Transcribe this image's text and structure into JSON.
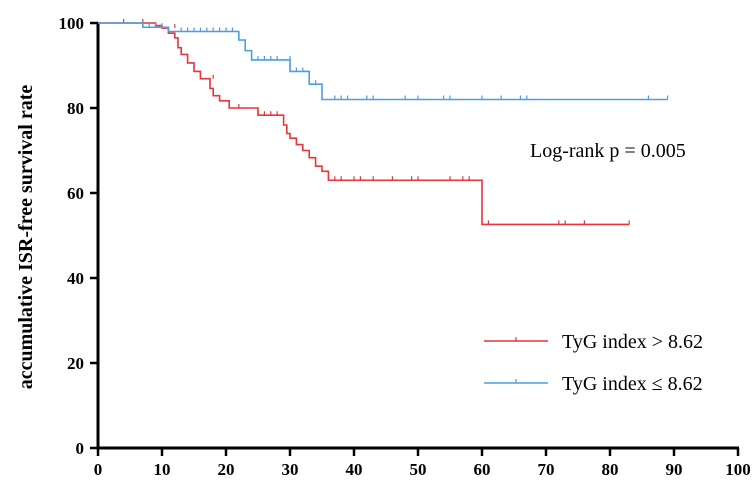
{
  "chart_data": {
    "type": "line",
    "xlabel": "",
    "ylabel": "accumulative ISR-free survival rate",
    "xlim": [
      0,
      100
    ],
    "ylim": [
      0,
      100
    ],
    "xticks": [
      "0",
      "10",
      "20",
      "30",
      "40",
      "50",
      "60",
      "70",
      "80",
      "90",
      "100"
    ],
    "yticks": [
      "0",
      "20",
      "40",
      "60",
      "80",
      "100"
    ],
    "annotation": "Log-rank p = 0.005",
    "legend_position": "bottom-right",
    "grid": false,
    "series": [
      {
        "name": "TyG index > 8.62",
        "color": "#e8343a",
        "steps": [
          [
            0,
            100
          ],
          [
            9,
            99.4
          ],
          [
            10,
            98.8
          ],
          [
            11,
            97.6
          ],
          [
            12,
            96.5
          ],
          [
            12.5,
            94.2
          ],
          [
            13,
            92.6
          ],
          [
            14,
            90.6
          ],
          [
            15,
            88.6
          ],
          [
            16,
            86.9
          ],
          [
            17.5,
            84.6
          ],
          [
            18,
            82.9
          ],
          [
            19,
            81.7
          ],
          [
            20.5,
            80
          ],
          [
            25,
            78.3
          ],
          [
            29,
            76
          ],
          [
            29.5,
            74
          ],
          [
            30,
            72.9
          ],
          [
            31,
            71.4
          ],
          [
            32,
            70
          ],
          [
            33,
            68.3
          ],
          [
            34,
            66.3
          ],
          [
            35,
            65.1
          ],
          [
            36,
            63
          ],
          [
            60,
            52.6
          ],
          [
            83,
            52.6
          ]
        ],
        "censored": [
          [
            4,
            100
          ],
          [
            7,
            100
          ],
          [
            12,
            98.8
          ],
          [
            18,
            86.9
          ],
          [
            22,
            80
          ],
          [
            25,
            78.3
          ],
          [
            26,
            78.3
          ],
          [
            27,
            78.3
          ],
          [
            28,
            78.3
          ],
          [
            37,
            63
          ],
          [
            38,
            63
          ],
          [
            40,
            63
          ],
          [
            41,
            63
          ],
          [
            43,
            63
          ],
          [
            46,
            63
          ],
          [
            49,
            63
          ],
          [
            50,
            63
          ],
          [
            55,
            63
          ],
          [
            57,
            63
          ],
          [
            58,
            63
          ],
          [
            61,
            52.6
          ],
          [
            72,
            52.6
          ],
          [
            73,
            52.6
          ],
          [
            76,
            52.6
          ],
          [
            83,
            52.6
          ]
        ]
      },
      {
        "name": "TyG index ≤ 8.62",
        "color": "#4a9de6",
        "steps": [
          [
            0,
            100
          ],
          [
            7,
            99
          ],
          [
            11,
            98
          ],
          [
            22,
            96
          ],
          [
            23,
            93.5
          ],
          [
            24,
            91.3
          ],
          [
            30,
            88.6
          ],
          [
            33,
            85.6
          ],
          [
            35,
            82
          ],
          [
            89,
            82
          ]
        ],
        "censored": [
          [
            8,
            99
          ],
          [
            9,
            99
          ],
          [
            10,
            99
          ],
          [
            13,
            98
          ],
          [
            14,
            98
          ],
          [
            15,
            98
          ],
          [
            16,
            98
          ],
          [
            17,
            98
          ],
          [
            18,
            98
          ],
          [
            19,
            98
          ],
          [
            20,
            98
          ],
          [
            21,
            98
          ],
          [
            25,
            91.3
          ],
          [
            26,
            91.3
          ],
          [
            27,
            91.3
          ],
          [
            28,
            91.3
          ],
          [
            30,
            91.3
          ],
          [
            31,
            88.6
          ],
          [
            32,
            88.6
          ],
          [
            34,
            85.6
          ],
          [
            37,
            82
          ],
          [
            38,
            82
          ],
          [
            39,
            82
          ],
          [
            42,
            82
          ],
          [
            43,
            82
          ],
          [
            48,
            82
          ],
          [
            50,
            82
          ],
          [
            54,
            82
          ],
          [
            55,
            82
          ],
          [
            60,
            82
          ],
          [
            63,
            82
          ],
          [
            66,
            82
          ],
          [
            67,
            82
          ],
          [
            86,
            82
          ],
          [
            89,
            82
          ]
        ]
      }
    ]
  }
}
